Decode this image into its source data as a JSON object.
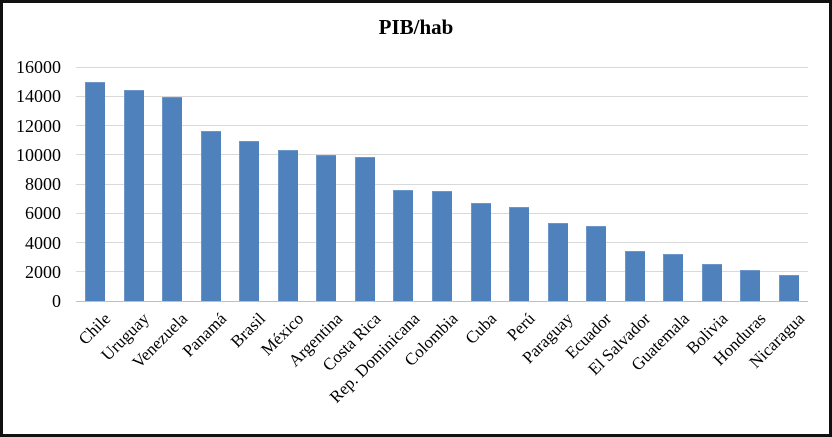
{
  "chart_data": {
    "type": "bar",
    "title": "PIB/hab",
    "categories": [
      "Chile",
      "Uruguay",
      "Venezuela",
      "Panamá",
      "Brasil",
      "México",
      "Argentina",
      "Costa Rica",
      "Rep. Dominicana",
      "Colombia",
      "Cuba",
      "Perú",
      "Paraguay",
      "Ecuador",
      "El Salvador",
      "Guatemala",
      "Bolivia",
      "Honduras",
      "Nicaragua"
    ],
    "values": [
      15000,
      14450,
      13950,
      11650,
      10950,
      10300,
      9950,
      9850,
      7600,
      7550,
      6700,
      6400,
      5300,
      5100,
      3450,
      3200,
      2500,
      2100,
      1800
    ],
    "xlabel": "",
    "ylabel": "",
    "ylim": [
      0,
      16000
    ],
    "yticks": [
      0,
      2000,
      4000,
      6000,
      8000,
      10000,
      12000,
      14000,
      16000
    ],
    "ytick_labels": [
      "0",
      "2000",
      "4000",
      "6000",
      "8000",
      "10000",
      "12000",
      "14000",
      "16000"
    ],
    "grid": true,
    "legend_position": "none",
    "colors": {
      "bar": "#4F81BD",
      "bar_highlight": "#6c96c8",
      "gridline": "#d9d9d9",
      "axis_line": "#bfbfbf",
      "text": "#000000",
      "background": "#ffffff",
      "frame_border": "#111111"
    }
  }
}
